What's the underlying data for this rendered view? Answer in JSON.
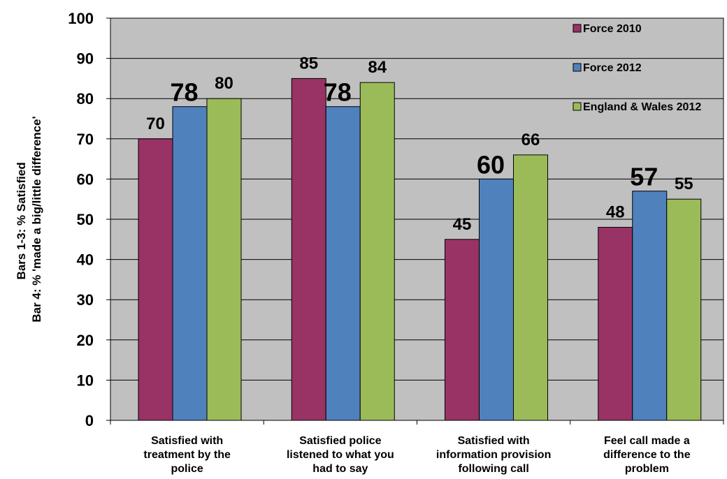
{
  "chart_data": {
    "type": "bar",
    "categories": [
      [
        "Satisfied with",
        "treatment by the",
        "police"
      ],
      [
        "Satisfied police",
        "listened to what you",
        "had to say"
      ],
      [
        "Satisfied with",
        "information provision",
        "following call"
      ],
      [
        "Feel call made a",
        "difference to the",
        "problem"
      ]
    ],
    "series": [
      {
        "name": "Force 2010",
        "color": "#993366",
        "values": [
          70,
          85,
          45,
          48
        ]
      },
      {
        "name": "Force 2012",
        "color": "#4f81bd",
        "values": [
          78,
          78,
          60,
          57
        ]
      },
      {
        "name": "England & Wales 2012",
        "color": "#9bbb59",
        "values": [
          80,
          84,
          66,
          55
        ]
      }
    ],
    "highlight_series": "Force 2012",
    "ylabel": [
      "Bars 1-3: % Satisfied",
      "Bar 4: % 'made a big/little difference'"
    ],
    "ylim": [
      0,
      100
    ],
    "yticks": [
      0,
      10,
      20,
      30,
      40,
      50,
      60,
      70,
      80,
      90,
      100
    ],
    "grid": true,
    "legend_position": "top-right",
    "plot_background": "#c0c0c0"
  }
}
